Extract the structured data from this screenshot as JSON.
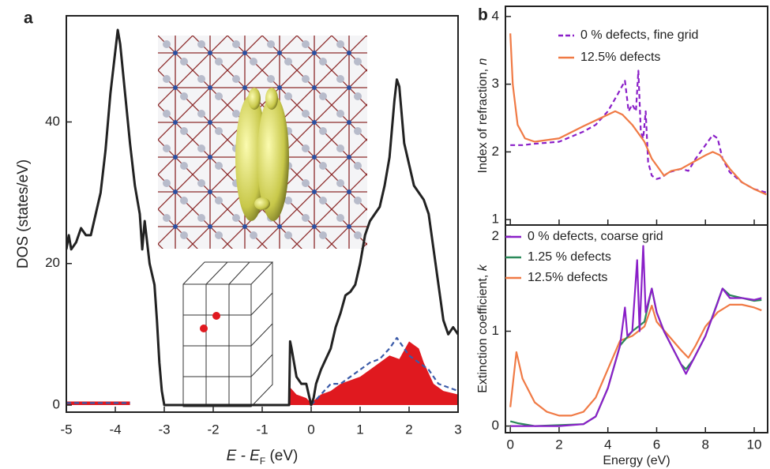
{
  "chart_data": [
    {
      "type": "line",
      "panel": "a",
      "y_label": "DOS (states/eV)",
      "x_label": {
        "main": "E",
        "mid": " - E",
        "sub": "F",
        "tail": " (eV)"
      },
      "xlim": [
        -5,
        3
      ],
      "ylim": [
        -1,
        55
      ],
      "xticks": [
        -5,
        -4,
        -3,
        -2,
        -1,
        0,
        1,
        2,
        3
      ],
      "yticks": [
        0,
        20,
        40
      ],
      "series": [
        {
          "color": "#e0191f",
          "fill": true,
          "x": [
            -5,
            -3.7,
            -3.69,
            -0.45,
            -0.43,
            -0.3,
            -0.1,
            0,
            0.2,
            0.4,
            0.6,
            0.8,
            1.0,
            1.2,
            1.4,
            1.6,
            1.8,
            2.0,
            2.2,
            2.3,
            2.5,
            2.7,
            3.0
          ],
          "values": [
            0.5,
            0.5,
            null,
            0,
            2.5,
            1.5,
            1,
            0.3,
            1.5,
            2,
            3,
            3.5,
            4,
            5,
            6,
            7,
            6.5,
            9,
            8,
            6,
            3,
            2,
            1.5
          ]
        },
        {
          "color": "#3a5aa8",
          "dash": true,
          "x": [
            -5,
            -3.7,
            -3.69,
            0,
            0.2,
            0.4,
            0.6,
            0.8,
            1.0,
            1.2,
            1.4,
            1.6,
            1.75,
            1.9,
            2.0,
            2.2,
            2.4,
            2.6,
            2.8,
            3.0
          ],
          "values": [
            0.3,
            0.3,
            null,
            0,
            1.5,
            3,
            3,
            4,
            5,
            6,
            6.5,
            8,
            9.5,
            8,
            7,
            6,
            5,
            3,
            2.5,
            2
          ]
        },
        {
          "color": "#222222",
          "x": [
            -5,
            -4.95,
            -4.9,
            -4.8,
            -4.7,
            -4.6,
            -4.5,
            -4.4,
            -4.3,
            -4.2,
            -4.1,
            -4.0,
            -3.95,
            -3.9,
            -3.8,
            -3.7,
            -3.6,
            -3.5,
            -3.45,
            -3.4,
            -3.3,
            -3.2,
            -3.15,
            -3.1,
            -3.05,
            -3.0,
            -0.45,
            -0.43,
            -0.4,
            -0.3,
            -0.2,
            -0.1,
            0,
            0.05,
            0.1,
            0.2,
            0.3,
            0.4,
            0.5,
            0.6,
            0.7,
            0.8,
            0.9,
            1.0,
            1.1,
            1.2,
            1.3,
            1.4,
            1.5,
            1.6,
            1.7,
            1.75,
            1.8,
            1.9,
            2.0,
            2.1,
            2.2,
            2.3,
            2.4,
            2.5,
            2.6,
            2.7,
            2.8,
            2.9,
            3.0
          ],
          "values": [
            22,
            24,
            22,
            23,
            25,
            24,
            24,
            27,
            30,
            36,
            44,
            50,
            53,
            51,
            44,
            37,
            31,
            27,
            22,
            26,
            20,
            17,
            12,
            6,
            2,
            0,
            0,
            9,
            8,
            4,
            3,
            3,
            0,
            1,
            3,
            5,
            6.5,
            8,
            11,
            13,
            15.5,
            16,
            17,
            20,
            24,
            26,
            27,
            28,
            31,
            35,
            43,
            46,
            45,
            37,
            34,
            31,
            30,
            29,
            27,
            22,
            17,
            12,
            10,
            11,
            10
          ]
        }
      ]
    },
    {
      "type": "line",
      "panel": "b",
      "y_label": {
        "main": "Index of refraction, ",
        "var": "n"
      },
      "xlim": [
        -0.2,
        10.55
      ],
      "ylim": [
        0.92,
        4.15
      ],
      "xticks": [
        0,
        2,
        4,
        6,
        8,
        10
      ],
      "show_xtick_labels": false,
      "yticks": [
        1,
        2,
        3,
        4
      ],
      "series": [
        {
          "name": "0 % defects, fine grid",
          "color": "#8a1fc8",
          "dash": true,
          "x": [
            0,
            0.5,
            1,
            2,
            3,
            3.5,
            4,
            4.4,
            4.7,
            4.85,
            5,
            5.15,
            5.25,
            5.35,
            5.45,
            5.55,
            5.65,
            5.8,
            6,
            6.2,
            6.5,
            7,
            7.3,
            7.6,
            8,
            8.3,
            8.5,
            8.7,
            9,
            9.5,
            10,
            10.5
          ],
          "values": [
            2.1,
            2.1,
            2.12,
            2.15,
            2.3,
            2.4,
            2.6,
            2.85,
            3.05,
            2.6,
            2.7,
            2.6,
            3.2,
            2.3,
            2.2,
            2.6,
            1.85,
            1.65,
            1.6,
            1.62,
            1.7,
            1.75,
            1.72,
            1.9,
            2.1,
            2.25,
            2.2,
            1.9,
            1.7,
            1.55,
            1.45,
            1.4
          ]
        },
        {
          "name": "12.5% defects",
          "color": "#f07a45",
          "x": [
            0,
            0.1,
            0.3,
            0.6,
            1,
            2,
            3,
            4,
            4.3,
            4.6,
            5,
            5.5,
            5.8,
            6,
            6.3,
            6.6,
            7,
            7.5,
            8,
            8.3,
            8.6,
            9,
            9.5,
            10,
            10.5
          ],
          "values": [
            3.75,
            3.0,
            2.4,
            2.2,
            2.15,
            2.2,
            2.38,
            2.55,
            2.6,
            2.55,
            2.4,
            2.15,
            1.9,
            1.8,
            1.65,
            1.72,
            1.75,
            1.85,
            1.95,
            2.0,
            1.95,
            1.75,
            1.55,
            1.45,
            1.37
          ]
        }
      ]
    },
    {
      "type": "line",
      "x_label": "Energy (eV)",
      "y_label": {
        "main": "Extinction coefficient, ",
        "var": "k"
      },
      "xlim": [
        -0.2,
        10.55
      ],
      "ylim": [
        -0.07,
        2.12
      ],
      "xticks": [
        0,
        2,
        4,
        6,
        8,
        10
      ],
      "yticks": [
        0,
        1,
        2
      ],
      "series": [
        {
          "name": "12.5% defects",
          "color": "#f07a45",
          "x": [
            0,
            0.25,
            0.5,
            1,
            1.5,
            2,
            2.5,
            3,
            3.5,
            4,
            4.5,
            5,
            5.5,
            5.8,
            6,
            6.5,
            7,
            7.3,
            7.6,
            8,
            8.5,
            9,
            9.5,
            10,
            10.3
          ],
          "values": [
            0.2,
            0.78,
            0.5,
            0.25,
            0.15,
            0.11,
            0.11,
            0.15,
            0.3,
            0.6,
            0.9,
            0.95,
            1.05,
            1.27,
            1.1,
            0.95,
            0.8,
            0.72,
            0.85,
            1.05,
            1.2,
            1.28,
            1.28,
            1.25,
            1.22
          ]
        },
        {
          "name": "1.25 % defects",
          "color": "#2b8a5a",
          "x": [
            0,
            0.3,
            1,
            3,
            3.5,
            4,
            4.5,
            5,
            5.5,
            5.8,
            6,
            6.3,
            7,
            7.2,
            7.5,
            8,
            8.7,
            9,
            9.5,
            10,
            10.3
          ],
          "values": [
            0.05,
            0.03,
            0,
            0.02,
            0.1,
            0.4,
            0.85,
            1.0,
            1.1,
            1.45,
            1.2,
            1.0,
            0.65,
            0.6,
            0.7,
            0.95,
            1.45,
            1.38,
            1.35,
            1.32,
            1.33
          ]
        },
        {
          "name": "0 % defects, coarse grid",
          "color": "#8a1fc8",
          "x": [
            0,
            2,
            3,
            3.5,
            4,
            4.5,
            4.7,
            4.8,
            5,
            5.2,
            5.3,
            5.45,
            5.55,
            5.8,
            6,
            6.3,
            6.6,
            7,
            7.2,
            7.5,
            8,
            8.5,
            8.7,
            9,
            9.5,
            10,
            10.3
          ],
          "values": [
            0,
            0,
            0.02,
            0.1,
            0.4,
            0.85,
            1.25,
            0.95,
            1.0,
            1.75,
            1.0,
            1.9,
            1.2,
            1.45,
            1.2,
            1.0,
            0.85,
            0.65,
            0.55,
            0.7,
            0.95,
            1.3,
            1.45,
            1.35,
            1.35,
            1.33,
            1.35
          ]
        }
      ]
    }
  ]
}
